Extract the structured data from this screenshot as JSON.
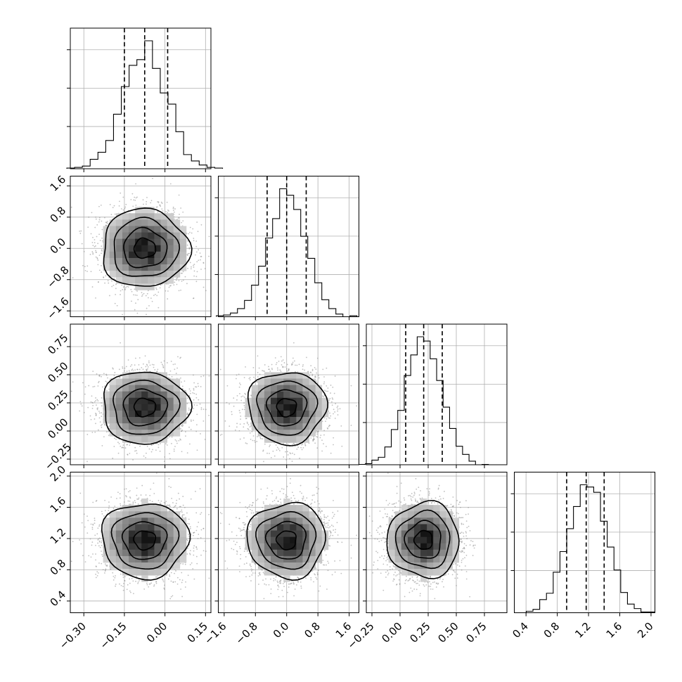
{
  "chart_data": {
    "type": "scatter",
    "kind": "corner plot",
    "parameters": 4,
    "title": "",
    "grid": true,
    "colors": {
      "lines": "#000000",
      "grid": "#b0b0b0",
      "points": "#8c8c8c"
    },
    "axes": [
      {
        "index": 0,
        "center": -0.075,
        "sigma": 0.08,
        "range": [
          -0.35,
          0.17
        ],
        "ticks": [
          -0.3,
          -0.15,
          0.0,
          0.15
        ],
        "tick_labels": [
          "−0.30",
          "−0.15",
          "0.00",
          "0.15"
        ],
        "quantiles": [
          -0.15,
          -0.075,
          0.01
        ]
      },
      {
        "index": 1,
        "center": 0.0,
        "sigma": 0.5,
        "range": [
          -1.75,
          1.85
        ],
        "ticks": [
          -1.6,
          -0.8,
          0.0,
          0.8,
          1.6
        ],
        "tick_labels": [
          "−1.6",
          "−0.8",
          "0.0",
          "0.8",
          "1.6"
        ],
        "quantiles": [
          -0.5,
          0.0,
          0.5
        ]
      },
      {
        "index": 2,
        "center": 0.21,
        "sigma": 0.16,
        "range": [
          -0.3,
          0.95
        ],
        "ticks": [
          -0.25,
          0.0,
          0.25,
          0.5,
          0.75
        ],
        "tick_labels": [
          "−0.25",
          "0.00",
          "0.25",
          "0.50",
          "0.75"
        ],
        "quantiles": [
          0.05,
          0.21,
          0.375
        ]
      },
      {
        "index": 3,
        "center": 1.18,
        "sigma": 0.24,
        "range": [
          0.25,
          2.05
        ],
        "ticks": [
          0.4,
          0.8,
          1.2,
          1.6,
          2.0
        ],
        "tick_labels": [
          "0.4",
          "0.8",
          "1.2",
          "1.6",
          "2.0"
        ],
        "quantiles": [
          0.92,
          1.17,
          1.4
        ]
      }
    ],
    "histogram_bins": 20,
    "samples_drawn": 2500
  }
}
